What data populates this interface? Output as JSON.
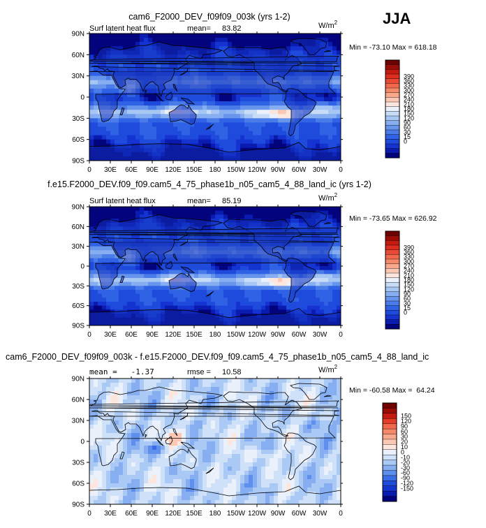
{
  "season": "JJA",
  "panel_colors": {
    "abs": [
      "#03037d",
      "#0a1bb0",
      "#1533d0",
      "#1e4bdc",
      "#2f62e4",
      "#4a7ce9",
      "#6795ec",
      "#86aef0",
      "#a6c6f4",
      "#c8dcf8",
      "#eaf1fb",
      "#fde6dd",
      "#fbc8b4",
      "#f9a98b",
      "#f6896a",
      "#f1684d",
      "#e94a35",
      "#dd2d1f",
      "#c51a10",
      "#9a0d06",
      "#700301"
    ],
    "diff": [
      "#03037d",
      "#0a1bb0",
      "#1533d0",
      "#1e4bdc",
      "#3b6ee6",
      "#5f8fec",
      "#86aef0",
      "#aac9f5",
      "#cfe0f9",
      "#eaf1fb",
      "#fde6dd",
      "#fbc8b4",
      "#f9a98b",
      "#f6896a",
      "#f1684d",
      "#e33c28",
      "#c51a10",
      "#9a0d06",
      "#700301"
    ]
  },
  "chart_data": [
    {
      "type": "heatmap",
      "title": "cam6_F2000_DEV_f09f09_003k (yrs 1-2)",
      "subtitle_left": "Surf latent heat flux",
      "stat_label": "mean=",
      "stat_value": "83.82",
      "units": "W/m",
      "units_sup": "2",
      "minmax_text": "Min = -73.10 Max = 618.18",
      "x_ticks": [
        "0",
        "30E",
        "60E",
        "90E",
        "120E",
        "150E",
        "180",
        "150W",
        "120W",
        "90W",
        "60W",
        "30W",
        "0"
      ],
      "y_ticks": [
        "90N",
        "60N",
        "30N",
        "0",
        "30S",
        "60S",
        "90S"
      ],
      "colorbar_levels": [
        "0",
        "15",
        "30",
        "60",
        "90",
        "120",
        "150",
        "180",
        "210",
        "240",
        "270",
        "300",
        "330",
        "360",
        "390"
      ],
      "colorscale": "abs"
    },
    {
      "type": "heatmap",
      "title": "f.e15.F2000_DEV.f09_f09.cam5_4_75_phase1b_n05_cam5_4_88_land_ic (yrs 1-2)",
      "subtitle_left": "Surf latent heat flux",
      "stat_label": "mean=",
      "stat_value": "85.19",
      "units": "W/m",
      "units_sup": "2",
      "minmax_text": "Min = -73.65 Max = 626.92",
      "x_ticks": [
        "0",
        "30E",
        "60E",
        "90E",
        "120E",
        "150E",
        "180",
        "150W",
        "120W",
        "90W",
        "60W",
        "30W",
        "0"
      ],
      "y_ticks": [
        "90N",
        "60N",
        "30N",
        "0",
        "30S",
        "60S",
        "90S"
      ],
      "colorbar_levels": [
        "0",
        "15",
        "30",
        "60",
        "90",
        "120",
        "150",
        "180",
        "210",
        "240",
        "270",
        "300",
        "330",
        "360",
        "390"
      ],
      "colorscale": "abs"
    },
    {
      "type": "heatmap",
      "title": "cam6_F2000_DEV_f09f09_003k - f.e15.F2000_DEV.f09_f09.cam5_4_75_phase1b_n05_cam5_4_88_land_ic",
      "subtitle_left": "mean =   -1.37",
      "stat_label": "rmse =",
      "stat_value": "10.58",
      "units": "W/m",
      "units_sup": "2",
      "minmax_text": "Min = -60.58 Max =  64.24",
      "x_ticks": [
        "0",
        "30E",
        "60E",
        "90E",
        "120E",
        "150E",
        "180",
        "150W",
        "120W",
        "90W",
        "60W",
        "30W",
        "0"
      ],
      "y_ticks": [
        "90N",
        "60N",
        "30N",
        "0",
        "30S",
        "60S",
        "90S"
      ],
      "colorbar_levels": [
        "-150",
        "-120",
        "-90",
        "-60",
        "-30",
        "-20",
        "-10",
        "0",
        "10",
        "20",
        "30",
        "60",
        "90",
        "120",
        "150"
      ],
      "colorscale": "diff"
    }
  ]
}
